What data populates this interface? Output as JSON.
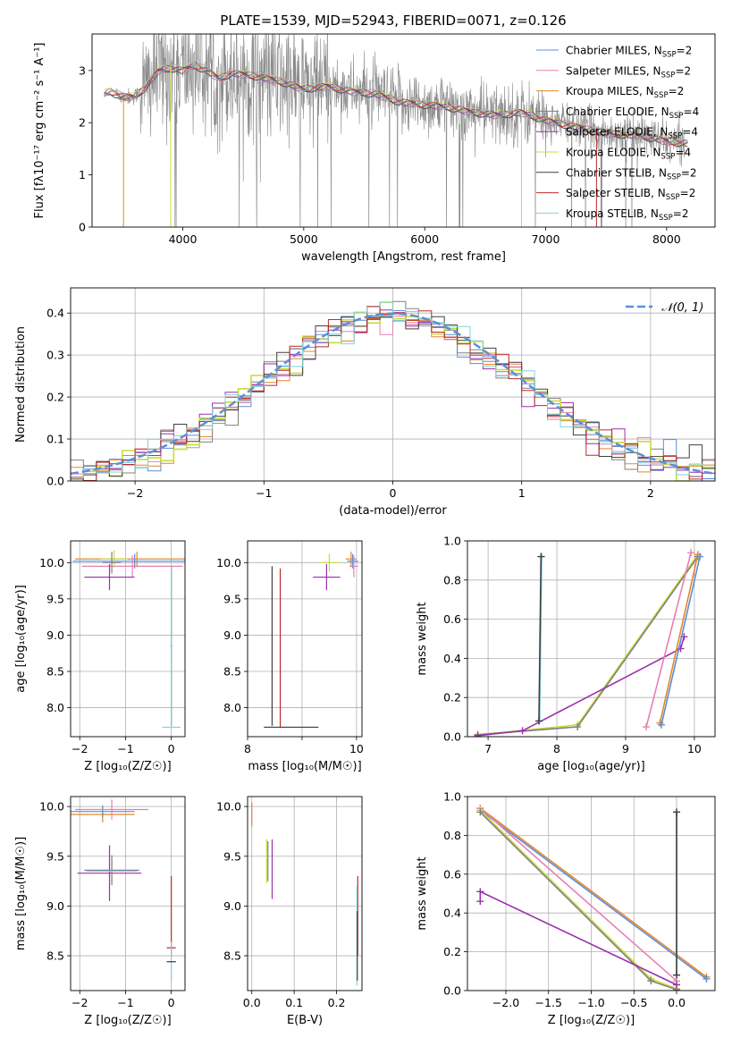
{
  "figure_title": "PLATE=1539, MJD=52943, FIBERID=0071, z=0.126",
  "colors": {
    "chabrier_miles": "#5b8fd6",
    "salpeter_miles": "#e87fb3",
    "kroupa_miles": "#e8862a",
    "chabrier_elodie": "#808080",
    "salpeter_elodie": "#9b2fae",
    "kroupa_elodie": "#c9dc3b",
    "chabrier_stelib": "#404040",
    "salpeter_stelib": "#c0282a",
    "kroupa_stelib": "#7fd3dc",
    "normal_curve": "#5b8fd6",
    "grid": "#b0b0b0"
  },
  "chart_data": [
    {
      "id": "spectrum",
      "type": "line",
      "title": "PLATE=1539, MJD=52943, FIBERID=0071, z=0.126",
      "xlabel": "wavelength [Angstrom, rest frame]",
      "ylabel": "Flux [fλ10⁻¹⁷ erg cm⁻² s⁻¹ A⁻¹]",
      "xlim": [
        3250,
        8400
      ],
      "ylim": [
        0,
        3.7
      ],
      "xticks": [
        "4000",
        "5000",
        "6000",
        "7000",
        "8000"
      ],
      "yticks": [
        "0",
        "1",
        "2",
        "3"
      ],
      "grid": false,
      "legend_position": "upper-right",
      "legend": [
        {
          "label": "Chabrier MILES, N",
          "sub": "SSP",
          "suffix": "=2",
          "color_key": "chabrier_miles"
        },
        {
          "label": "Salpeter MILES, N",
          "sub": "SSP",
          "suffix": "=2",
          "color_key": "salpeter_miles"
        },
        {
          "label": "Kroupa MILES, N",
          "sub": "SSP",
          "suffix": "=2",
          "color_key": "kroupa_miles"
        },
        {
          "label": "Chabrier ELODIE, N",
          "sub": "SSP",
          "suffix": "=4",
          "color_key": "chabrier_elodie"
        },
        {
          "label": "Salpeter ELODIE, N",
          "sub": "SSP",
          "suffix": "=4",
          "color_key": "salpeter_elodie"
        },
        {
          "label": "Kroupa ELODIE, N",
          "sub": "SSP",
          "suffix": "=4",
          "color_key": "kroupa_elodie"
        },
        {
          "label": "Chabrier STELIB, N",
          "sub": "SSP",
          "suffix": "=2",
          "color_key": "chabrier_stelib"
        },
        {
          "label": "Salpeter STELIB, N",
          "sub": "SSP",
          "suffix": "=2",
          "color_key": "salpeter_stelib"
        },
        {
          "label": "Kroupa STELIB, N",
          "sub": "SSP",
          "suffix": "=2",
          "color_key": "kroupa_stelib"
        }
      ],
      "model_continuum": [
        [
          3350,
          2.55
        ],
        [
          3400,
          2.6
        ],
        [
          3500,
          2.5
        ],
        [
          3600,
          2.5
        ],
        [
          3700,
          2.7
        ],
        [
          3800,
          3.0
        ],
        [
          3900,
          3.05
        ],
        [
          4000,
          3.0
        ],
        [
          4100,
          3.1
        ],
        [
          4200,
          3.0
        ],
        [
          4300,
          2.85
        ],
        [
          4400,
          2.95
        ],
        [
          4600,
          2.9
        ],
        [
          4800,
          2.8
        ],
        [
          5000,
          2.65
        ],
        [
          5200,
          2.7
        ],
        [
          5400,
          2.6
        ],
        [
          5600,
          2.55
        ],
        [
          5800,
          2.4
        ],
        [
          6000,
          2.35
        ],
        [
          6200,
          2.3
        ],
        [
          6400,
          2.2
        ],
        [
          6600,
          2.15
        ],
        [
          6800,
          2.2
        ],
        [
          7000,
          2.05
        ],
        [
          7200,
          1.95
        ],
        [
          7500,
          1.8
        ],
        [
          7800,
          1.75
        ],
        [
          8000,
          1.65
        ],
        [
          8180,
          1.6
        ]
      ],
      "noise_start": 3450,
      "noise_end": 8150
    },
    {
      "id": "residuals",
      "type": "line",
      "xlabel": "(data-model)/error",
      "ylabel": "Normed distribution",
      "xlim": [
        -2.5,
        2.5
      ],
      "ylim": [
        0,
        0.46
      ],
      "xticks": [
        "−2",
        "−1",
        "0",
        "1",
        "2"
      ],
      "yticks": [
        "0.0",
        "0.1",
        "0.2",
        "0.3",
        "0.4"
      ],
      "grid": true,
      "legend_position": "upper-right",
      "legend": [
        {
          "label": "𝒩(0, 1)",
          "color_key": "normal_curve",
          "dashed": true
        }
      ],
      "bin_width": 0.1,
      "normal_mean": 0,
      "normal_sigma": 1
    },
    {
      "id": "age-vs-Z",
      "type": "scatter",
      "xlabel": "Z [log₁₀(Z/Z☉)]",
      "ylabel": "age  [log₁₀(age/yr)]",
      "xlim": [
        -2.2,
        0.3
      ],
      "ylim": [
        7.6,
        10.3
      ],
      "xticks": [
        "−2",
        "−1",
        "0"
      ],
      "yticks": [
        "8.0",
        "8.5",
        "9.0",
        "9.5",
        "10.0"
      ],
      "grid": true,
      "series": [
        {
          "color_key": "kroupa_miles",
          "x": -0.75,
          "y": 10.05,
          "xerr": 1.35,
          "yerr": 0.1
        },
        {
          "color_key": "chabrier_miles",
          "x": -0.8,
          "y": 10.02,
          "xerr": 1.35,
          "yerr": 0.1
        },
        {
          "color_key": "salpeter_miles",
          "x": -0.85,
          "y": 9.95,
          "xerr": 1.1,
          "yerr": 0.15
        },
        {
          "color_key": "kroupa_elodie",
          "x": -1.25,
          "y": 10.05,
          "xerr": 0.3,
          "yerr": 0.12
        },
        {
          "color_key": "salpeter_elodie",
          "x": -1.35,
          "y": 9.8,
          "xerr": 0.55,
          "yerr": 0.18
        },
        {
          "color_key": "chabrier_elodie",
          "x": -1.3,
          "y": 10.0,
          "xerr": 0.2,
          "yerr": 0.15
        },
        {
          "color_key": "chabrier_stelib",
          "x": 0.0,
          "y": 8.85,
          "xerr": 0.02,
          "yerr": 1.1
        },
        {
          "color_key": "kroupa_stelib",
          "x": 0.0,
          "y": 8.85,
          "xerr": 0.02,
          "yerr": 1.1
        },
        {
          "color_key": "kroupa_stelib",
          "x": 0.0,
          "y": 7.73,
          "xerr": 0.2,
          "yerr": 0.0
        }
      ]
    },
    {
      "id": "age-vs-mass",
      "type": "scatter",
      "xlabel": "mass [log₁₀(M/M☉)]",
      "ylabel": "",
      "xlim": [
        8.0,
        10.1
      ],
      "ylim": [
        7.6,
        10.3
      ],
      "xticks": [
        "8",
        "10"
      ],
      "yticks": [
        "8.0",
        "8.5",
        "9.0",
        "9.5",
        "10.0"
      ],
      "grid": true,
      "series": [
        {
          "color_key": "kroupa_miles",
          "x": 9.9,
          "y": 10.05,
          "xerr": 0.1,
          "yerr": 0.1
        },
        {
          "color_key": "chabrier_miles",
          "x": 9.93,
          "y": 10.02,
          "xerr": 0.1,
          "yerr": 0.1
        },
        {
          "color_key": "salpeter_miles",
          "x": 9.95,
          "y": 9.95,
          "xerr": 0.08,
          "yerr": 0.15
        },
        {
          "color_key": "kroupa_elodie",
          "x": 9.5,
          "y": 10.0,
          "xerr": 0.2,
          "yerr": 0.12
        },
        {
          "color_key": "salpeter_elodie",
          "x": 9.45,
          "y": 9.8,
          "xerr": 0.25,
          "yerr": 0.18
        },
        {
          "color_key": "chabrier_stelib",
          "x": 8.45,
          "y": 8.85,
          "xerr": 0.0,
          "yerr": 1.1
        },
        {
          "color_key": "salpeter_stelib",
          "x": 8.6,
          "y": 8.82,
          "xerr": 0.0,
          "yerr": 1.1
        },
        {
          "color_key": "kroupa_stelib",
          "x": 8.8,
          "y": 7.73,
          "xerr": 0.5,
          "yerr": 0.0
        },
        {
          "color_key": "chabrier_stelib",
          "x": 8.8,
          "y": 7.73,
          "xerr": 0.5,
          "yerr": 0.0
        }
      ]
    },
    {
      "id": "weight-vs-age",
      "type": "line",
      "xlabel": "age  [log₁₀(age/yr)]",
      "ylabel": "mass weight",
      "xlim": [
        6.7,
        10.3
      ],
      "ylim": [
        0,
        1.0
      ],
      "xticks": [
        "7",
        "8",
        "9",
        "10"
      ],
      "yticks": [
        "0.0",
        "0.2",
        "0.4",
        "0.6",
        "0.8",
        "1.0"
      ],
      "grid": true,
      "series": [
        {
          "color_key": "kroupa_elodie",
          "x": [
            6.85,
            8.3,
            10.05
          ],
          "y": [
            0.01,
            0.06,
            0.93
          ]
        },
        {
          "color_key": "chabrier_elodie",
          "x": [
            6.85,
            8.3,
            10.05
          ],
          "y": [
            0.01,
            0.05,
            0.92
          ]
        },
        {
          "color_key": "salpeter_elodie",
          "x": [
            6.85,
            7.5,
            9.8,
            9.85
          ],
          "y": [
            0.005,
            0.03,
            0.45,
            0.51
          ]
        },
        {
          "color_key": "salpeter_miles",
          "x": [
            9.3,
            9.95
          ],
          "y": [
            0.05,
            0.94
          ]
        },
        {
          "color_key": "kroupa_miles",
          "x": [
            9.5,
            10.05
          ],
          "y": [
            0.07,
            0.93
          ]
        },
        {
          "color_key": "chabrier_miles",
          "x": [
            9.52,
            10.08
          ],
          "y": [
            0.06,
            0.92
          ]
        },
        {
          "color_key": "kroupa_stelib",
          "x": [
            7.75,
            7.78
          ],
          "y": [
            0.08,
            0.92
          ]
        },
        {
          "color_key": "chabrier_stelib",
          "x": [
            7.74,
            7.77
          ],
          "y": [
            0.08,
            0.92
          ]
        }
      ]
    },
    {
      "id": "mass-vs-Z",
      "type": "scatter",
      "xlabel": "Z [log₁₀(Z/Z☉)]",
      "ylabel": "mass [log₁₀(M/M☉)]",
      "xlim": [
        -2.2,
        0.3
      ],
      "ylim": [
        8.15,
        10.1
      ],
      "xticks": [
        "−2",
        "−1",
        "0"
      ],
      "yticks": [
        "8.5",
        "9.0",
        "9.5",
        "10.0"
      ],
      "grid": true,
      "series": [
        {
          "color_key": "kroupa_miles",
          "x": -1.5,
          "y": 9.92,
          "xerr": 0.7,
          "yerr": 0.08
        },
        {
          "color_key": "chabrier_miles",
          "x": -1.5,
          "y": 9.95,
          "xerr": 0.7,
          "yerr": 0.06
        },
        {
          "color_key": "salpeter_miles",
          "x": -1.3,
          "y": 9.97,
          "xerr": 0.8,
          "yerr": 0.1
        },
        {
          "color_key": "kroupa_elodie",
          "x": -1.3,
          "y": 9.35,
          "xerr": 0.55,
          "yerr": 0.12
        },
        {
          "color_key": "salpeter_elodie",
          "x": -1.35,
          "y": 9.33,
          "xerr": 0.7,
          "yerr": 0.28
        },
        {
          "color_key": "chabrier_elodie",
          "x": -1.3,
          "y": 9.36,
          "xerr": 0.6,
          "yerr": 0.15
        },
        {
          "color_key": "kroupa_stelib",
          "x": -1.3,
          "y": 9.35,
          "xerr": 0.55,
          "yerr": 0.0
        },
        {
          "color_key": "salpeter_stelib",
          "x": 0.0,
          "y": 8.9,
          "xerr": 0.0,
          "yerr": 0.4
        },
        {
          "color_key": "salpeter_stelib",
          "x": 0.0,
          "y": 8.58,
          "xerr": 0.1,
          "yerr": 0.0
        },
        {
          "color_key": "kroupa_stelib",
          "x": 0.0,
          "y": 8.44,
          "xerr": 0.1,
          "yerr": 0.2
        },
        {
          "color_key": "chabrier_stelib",
          "x": 0.0,
          "y": 8.44,
          "xerr": 0.1,
          "yerr": 0.0
        }
      ]
    },
    {
      "id": "mass-vs-EBV",
      "type": "scatter",
      "xlabel": "E(B-V)",
      "ylabel": "",
      "xlim": [
        -0.01,
        0.26
      ],
      "ylim": [
        8.15,
        10.1
      ],
      "xticks": [
        "0.0",
        "0.1",
        "0.2"
      ],
      "yticks": [
        "8.5",
        "9.0",
        "9.5",
        "10.0"
      ],
      "grid": true,
      "series": [
        {
          "color_key": "kroupa_miles",
          "x": 0.0,
          "y": 9.92,
          "xerr": 0.0,
          "yerr": 0.12
        },
        {
          "color_key": "salpeter_miles",
          "x": 0.0,
          "y": 9.93,
          "xerr": 0.0,
          "yerr": 0.08
        },
        {
          "color_key": "kroupa_elodie",
          "x": 0.035,
          "y": 9.45,
          "xerr": 0.0,
          "yerr": 0.22
        },
        {
          "color_key": "salpeter_elodie",
          "x": 0.048,
          "y": 9.37,
          "xerr": 0.0,
          "yerr": 0.3
        },
        {
          "color_key": "chabrier_elodie",
          "x": 0.038,
          "y": 9.45,
          "xerr": 0.0,
          "yerr": 0.2
        },
        {
          "color_key": "salpeter_stelib",
          "x": 0.25,
          "y": 8.9,
          "xerr": 0.0,
          "yerr": 0.4
        },
        {
          "color_key": "kroupa_stelib",
          "x": 0.248,
          "y": 8.7,
          "xerr": 0.0,
          "yerr": 0.5
        },
        {
          "color_key": "chabrier_stelib",
          "x": 0.249,
          "y": 8.6,
          "xerr": 0.0,
          "yerr": 0.35
        }
      ]
    },
    {
      "id": "weight-vs-Z",
      "type": "line",
      "xlabel": "Z [log₁₀(Z/Z☉)]",
      "ylabel": "mass weight",
      "xlim": [
        -2.45,
        0.45
      ],
      "ylim": [
        0,
        1.0
      ],
      "xticks": [
        "−2.0",
        "−1.5",
        "−1.0",
        "−0.5",
        "0.0"
      ],
      "yticks": [
        "0.0",
        "0.2",
        "0.4",
        "0.6",
        "0.8",
        "1.0"
      ],
      "grid": true,
      "series": [
        {
          "color_key": "kroupa_miles",
          "x": [
            -2.3,
            0.35
          ],
          "y": [
            0.94,
            0.07
          ]
        },
        {
          "color_key": "chabrier_miles",
          "x": [
            -2.3,
            0.35
          ],
          "y": [
            0.93,
            0.06
          ]
        },
        {
          "color_key": "salpeter_miles",
          "x": [
            -2.3,
            0.0
          ],
          "y": [
            0.94,
            0.05
          ]
        },
        {
          "color_key": "kroupa_elodie",
          "x": [
            -2.3,
            -0.3,
            0.0
          ],
          "y": [
            0.93,
            0.06,
            0.01
          ]
        },
        {
          "color_key": "chabrier_elodie",
          "x": [
            -2.3,
            -0.3,
            0.0
          ],
          "y": [
            0.92,
            0.05,
            0.005
          ]
        },
        {
          "color_key": "salpeter_elodie",
          "x": [
            -2.3,
            -2.3,
            0.0
          ],
          "y": [
            0.46,
            0.51,
            0.03
          ]
        },
        {
          "color_key": "kroupa_stelib",
          "x": [
            0.0,
            0.0
          ],
          "y": [
            0.08,
            0.92
          ]
        },
        {
          "color_key": "chabrier_stelib",
          "x": [
            0.0,
            0.0
          ],
          "y": [
            0.08,
            0.92
          ]
        }
      ]
    }
  ]
}
